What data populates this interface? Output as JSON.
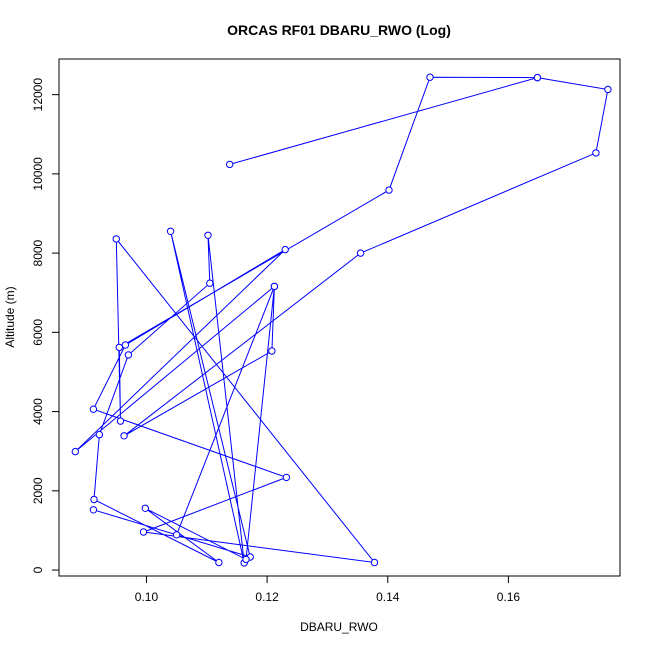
{
  "chart_data": {
    "type": "line",
    "title": "ORCAS RF01 DBARU_RWO (Log)",
    "xlabel": "DBARU_RWO",
    "ylabel": "Altitude (m)",
    "xlim": [
      0.0855,
      0.1785
    ],
    "ylim": [
      -150,
      12900
    ],
    "x_ticks": [
      0.1,
      0.12,
      0.14,
      0.16
    ],
    "x_tick_labels": [
      "0.10",
      "0.12",
      "0.14",
      "0.16"
    ],
    "y_ticks": [
      0,
      2000,
      4000,
      6000,
      8000,
      10000,
      12000
    ],
    "y_tick_labels": [
      "0",
      "2000",
      "4000",
      "6000",
      "8000",
      "10000",
      "12000"
    ],
    "series": [
      {
        "color": "#0000ff",
        "marker": "open-circle",
        "points": [
          {
            "x": 0.1138,
            "y": 10240
          },
          {
            "x": 0.1648,
            "y": 12430
          },
          {
            "x": 0.147,
            "y": 12440
          },
          {
            "x": 0.1402,
            "y": 9590
          },
          {
            "x": 0.0955,
            "y": 5620
          },
          {
            "x": 0.0957,
            "y": 3760
          },
          {
            "x": 0.095,
            "y": 8360
          },
          {
            "x": 0.1378,
            "y": 190
          },
          {
            "x": 0.0995,
            "y": 960
          },
          {
            "x": 0.1232,
            "y": 2340
          },
          {
            "x": 0.0912,
            "y": 4060
          },
          {
            "x": 0.0965,
            "y": 5680
          },
          {
            "x": 0.123,
            "y": 8090
          },
          {
            "x": 0.0882,
            "y": 2990
          },
          {
            "x": 0.1212,
            "y": 7160
          },
          {
            "x": 0.105,
            "y": 890
          },
          {
            "x": 0.0912,
            "y": 1520
          },
          {
            "x": 0.1172,
            "y": 330
          },
          {
            "x": 0.104,
            "y": 8550
          },
          {
            "x": 0.1162,
            "y": 180
          },
          {
            "x": 0.1102,
            "y": 8450
          },
          {
            "x": 0.1105,
            "y": 7240
          },
          {
            "x": 0.097,
            "y": 5430
          },
          {
            "x": 0.0922,
            "y": 3420
          },
          {
            "x": 0.0913,
            "y": 1780
          },
          {
            "x": 0.112,
            "y": 190
          },
          {
            "x": 0.0998,
            "y": 1560
          },
          {
            "x": 0.1165,
            "y": 270
          },
          {
            "x": 0.1212,
            "y": 7160
          },
          {
            "x": 0.1208,
            "y": 5530
          },
          {
            "x": 0.0963,
            "y": 3390
          },
          {
            "x": 0.1355,
            "y": 8000
          },
          {
            "x": 0.1745,
            "y": 10530
          },
          {
            "x": 0.1765,
            "y": 12130
          },
          {
            "x": 0.1648,
            "y": 12430
          }
        ]
      }
    ]
  }
}
